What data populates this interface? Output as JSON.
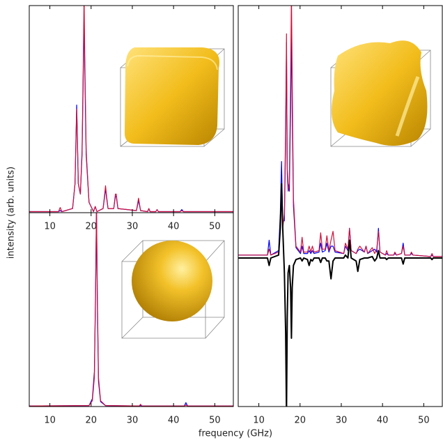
{
  "figure": {
    "xlabel": "frequency (GHz)",
    "ylabel": "intensity (arb. units)"
  },
  "chart_data": [
    {
      "type": "line",
      "xlim": [
        5,
        54.5
      ],
      "ylim": [
        0,
        1
      ],
      "xticks": [
        10,
        20,
        30,
        40,
        50
      ],
      "x": [
        5,
        12.1,
        12.5,
        12.9,
        15.5,
        16.1,
        16.35,
        16.5,
        16.65,
        16.9,
        17.4,
        17.8,
        18.15,
        18.3,
        18.45,
        18.8,
        19.5,
        20.6,
        21,
        21.4,
        22.9,
        23.3,
        23.5,
        23.7,
        24.1,
        25.5,
        25.9,
        26.1,
        26.5,
        31,
        31.5,
        32,
        33.7,
        34,
        34.3,
        35.7,
        36,
        36.3,
        41.6,
        42,
        42.4,
        54.5
      ],
      "series": [
        {
          "color": "#0000ff",
          "values": [
            0.005,
            0.005,
            0.01,
            0.005,
            0.02,
            0.14,
            0.38,
            0.52,
            0.38,
            0.14,
            0.09,
            0.28,
            0.72,
            0.95,
            0.72,
            0.28,
            0.05,
            0.005,
            0.03,
            0.005,
            0.02,
            0.08,
            0.12,
            0.08,
            0.02,
            0.02,
            0.08,
            0.08,
            0.02,
            0.01,
            0.06,
            0.01,
            0.005,
            0.02,
            0.005,
            0.005,
            0.015,
            0.005,
            0.005,
            0.015,
            0.005,
            0.005
          ]
        },
        {
          "color": "#d0103a",
          "values": [
            0.005,
            0.005,
            0.025,
            0.005,
            0.02,
            0.14,
            0.37,
            0.5,
            0.37,
            0.14,
            0.09,
            0.3,
            0.78,
            1.05,
            0.78,
            0.3,
            0.05,
            0.005,
            0.03,
            0.005,
            0.02,
            0.09,
            0.13,
            0.09,
            0.02,
            0.02,
            0.09,
            0.09,
            0.02,
            0.01,
            0.07,
            0.01,
            0.005,
            0.02,
            0.005,
            0.005,
            0.015,
            0.005,
            0.005,
            0.01,
            0.005,
            0.005
          ]
        }
      ]
    },
    {
      "type": "line",
      "xlim": [
        5,
        54.5
      ],
      "ylim": [
        0,
        1
      ],
      "xticks": [
        10,
        20,
        30,
        40,
        50
      ],
      "x": [
        5,
        19.5,
        20.3,
        20.8,
        21.1,
        21.3,
        21.5,
        21.8,
        22.3,
        23.5,
        31.7,
        32,
        32.3,
        42.6,
        43,
        43.4,
        54.5
      ],
      "series": [
        {
          "color": "#0000ff",
          "values": [
            0.003,
            0.005,
            0.04,
            0.18,
            0.62,
            1.03,
            0.55,
            0.13,
            0.025,
            0.005,
            0.003,
            0.006,
            0.003,
            0.003,
            0.02,
            0.003,
            0.003
          ]
        },
        {
          "color": "#d0103a",
          "values": [
            0.003,
            0.005,
            0.03,
            0.15,
            0.6,
            1.05,
            0.6,
            0.15,
            0.03,
            0.005,
            0.003,
            0.012,
            0.003,
            0.003,
            0.008,
            0.003,
            0.003
          ]
        }
      ]
    },
    {
      "type": "line",
      "xlim": [
        5,
        54.5
      ],
      "ylim": [
        -1,
        1.7
      ],
      "xticks": [
        10,
        20,
        30,
        40,
        50
      ],
      "x": [
        5,
        12.1,
        12.5,
        12.9,
        14.8,
        15.2,
        15.5,
        15.8,
        16.2,
        16.5,
        16.7,
        16.9,
        17.1,
        17.4,
        17.7,
        17.9,
        18.1,
        18.4,
        19,
        20.1,
        20.5,
        20.9,
        21.8,
        22.2,
        22.6,
        23,
        23.4,
        24.6,
        25,
        25.4,
        26.1,
        26.5,
        27,
        27.5,
        28,
        28.5,
        30.6,
        31,
        31.6,
        32,
        32.4,
        33.6,
        34,
        34.5,
        35.6,
        36,
        36.4,
        37.5,
        38.1,
        38.6,
        39,
        39.4,
        40.7,
        41,
        41.4,
        42.7,
        43,
        43.4,
        44.6,
        45,
        45.4,
        46.7,
        47,
        47.4,
        51.7,
        52,
        52.3,
        54.5
      ],
      "series": [
        {
          "color": "#0000ff",
          "values": [
            0.02,
            0.02,
            0.12,
            0.02,
            0.05,
            0.3,
            0.65,
            0.25,
            0.25,
            0.8,
            1.45,
            0.6,
            0.5,
            0.45,
            1.0,
            1.55,
            1.0,
            0.35,
            0.07,
            0.03,
            0.08,
            0.03,
            0.03,
            0.05,
            0.03,
            0.05,
            0.03,
            0.04,
            0.1,
            0.04,
            0.05,
            0.1,
            0.04,
            0.08,
            0.08,
            0.04,
            0.03,
            0.08,
            0.05,
            0.2,
            0.05,
            0.03,
            0.05,
            0.06,
            0.04,
            0.08,
            0.03,
            0.05,
            0.06,
            0.04,
            0.2,
            0.04,
            0.02,
            0.03,
            0.02,
            0.02,
            0.03,
            0.02,
            0.03,
            0.1,
            0.02,
            0.02,
            0.03,
            0.02,
            0.01,
            0.02,
            0.01,
            0.01
          ]
        },
        {
          "color": "#d0103a",
          "values": [
            0.02,
            0.02,
            0.06,
            0.02,
            0.04,
            0.2,
            0.45,
            0.2,
            0.3,
            0.9,
            1.51,
            0.57,
            0.45,
            0.5,
            1.2,
            1.8,
            1.2,
            0.4,
            0.08,
            0.04,
            0.14,
            0.04,
            0.04,
            0.08,
            0.04,
            0.08,
            0.04,
            0.05,
            0.17,
            0.06,
            0.06,
            0.15,
            0.05,
            0.12,
            0.18,
            0.05,
            0.03,
            0.1,
            0.06,
            0.2,
            0.05,
            0.03,
            0.06,
            0.08,
            0.04,
            0.08,
            0.03,
            0.07,
            0.03,
            0.06,
            0.18,
            0.04,
            0.02,
            0.05,
            0.02,
            0.02,
            0.04,
            0.02,
            0.03,
            0.08,
            0.02,
            0.02,
            0.04,
            0.02,
            0.01,
            0.03,
            0.01,
            0.01
          ]
        },
        {
          "color": "#000000",
          "values": [
            0,
            0,
            -0.05,
            0,
            0.02,
            0.2,
            0.5,
            0.2,
            -0.1,
            -0.5,
            -1.05,
            -0.4,
            -0.1,
            -0.05,
            -0.2,
            -0.54,
            -0.2,
            -0.05,
            -0.01,
            0,
            -0.02,
            0,
            -0.01,
            -0.05,
            -0.01,
            -0.02,
            0,
            0,
            -0.03,
            0,
            0,
            -0.02,
            -0.02,
            -0.14,
            -0.02,
            0,
            0,
            0.02,
            0,
            0.12,
            0,
            -0.02,
            -0.09,
            -0.01,
            0,
            0,
            0,
            0.01,
            -0.02,
            0,
            0.05,
            0,
            0,
            -0.01,
            0,
            0,
            0,
            0,
            0,
            -0.04,
            0,
            0,
            0,
            0,
            0,
            -0.01,
            0,
            0
          ]
        }
      ]
    }
  ]
}
